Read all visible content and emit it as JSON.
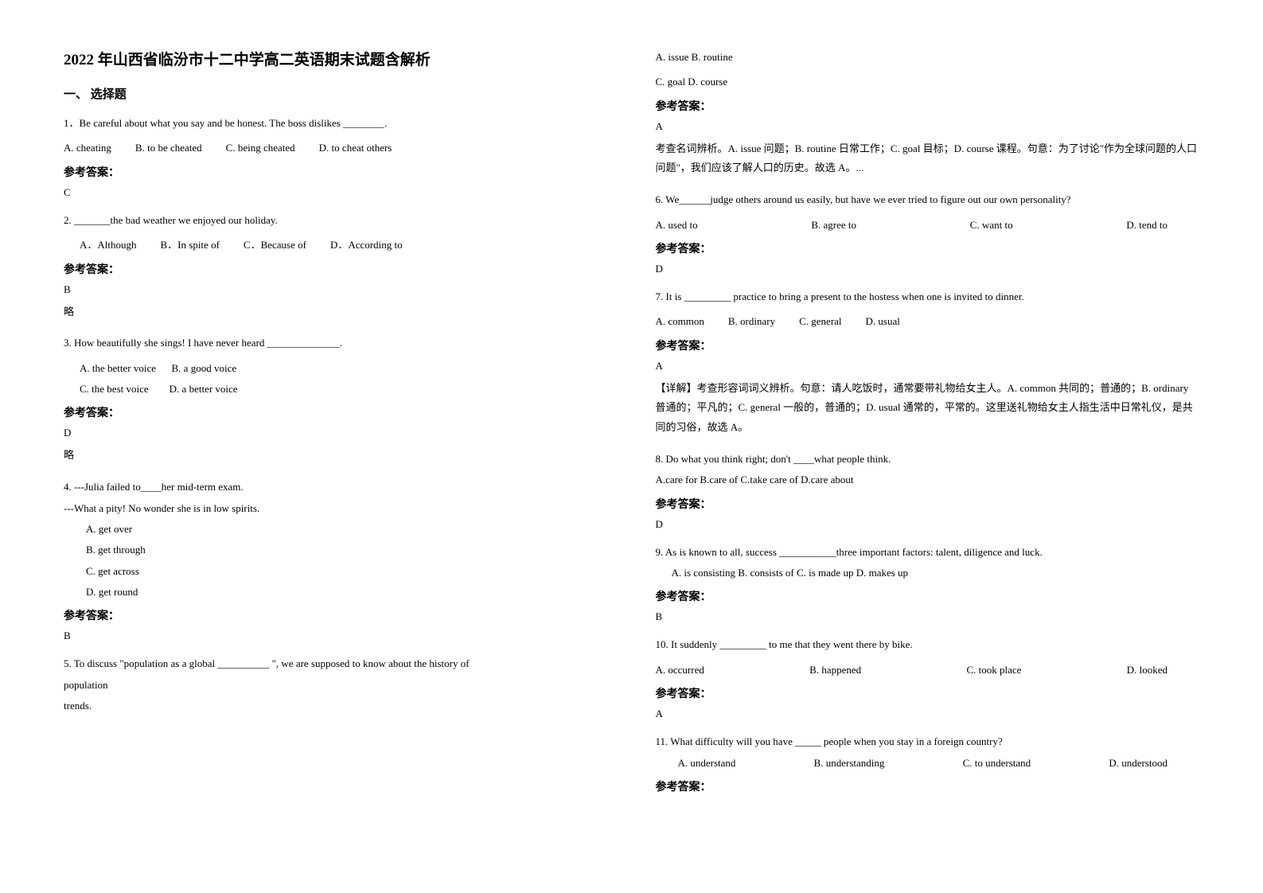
{
  "title": "2022 年山西省临汾市十二中学高二英语期末试题含解析",
  "sectionHeader": "一、 选择题",
  "answerLabel": "参考答案：",
  "left": {
    "q1": {
      "text": "1．Be careful about what you say and be honest. The boss dislikes ________.",
      "optA": "A. cheating",
      "optB": "B. to be cheated",
      "optC": "C. being cheated",
      "optD": "D. to cheat others",
      "answer": "C"
    },
    "q2": {
      "text": "2. _______the bad weather we enjoyed our holiday.",
      "optA": "A．Although",
      "optB": "B．In spite of",
      "optC": "C．Because of",
      "optD": "D．According to",
      "answer": "B",
      "explanation": "略"
    },
    "q3": {
      "text": "3. How beautifully she sings! I have never heard ______________.",
      "optA": "A. the better voice",
      "optB": "B. a good voice",
      "optC": "C. the best voice",
      "optD": "D. a better voice",
      "answer": "D",
      "explanation": "略"
    },
    "q4": {
      "text1": "4. ---Julia failed to____her mid-term exam.",
      "text2": "---What a pity! No wonder she is in low spirits.",
      "optA": "A. get over",
      "optB": "B. get through",
      "optC": "C. get across",
      "optD": "D. get round",
      "answer": "B"
    },
    "q5": {
      "text1": "5. To discuss \"population as a global __________ \", we are supposed to know about the history of",
      "text2": "population",
      "text3": "trends."
    }
  },
  "right": {
    "q5cont": {
      "optLine1": "A. issue    B. routine",
      "optLine2": "C. goal    D. course",
      "answer": "A",
      "explanation": "考查名词辨析。A. issue 问题；B. routine 日常工作；C. goal 目标；D. course 课程。句意：为了讨论\"作为全球问题的人口问题\"，我们应该了解人口的历史。故选 A。..."
    },
    "q6": {
      "text": "6. We______judge others around us easily, but have we ever tried to figure out our own personality?",
      "optA": "A. used to",
      "optB": "B. agree to",
      "optC": "C. want to",
      "optD": "D. tend to",
      "answer": "D"
    },
    "q7": {
      "text": "7. It is _________ practice to bring a present to the hostess when one is invited to dinner.",
      "optA": "A. common",
      "optB": "B. ordinary",
      "optC": "C. general",
      "optD": "D. usual",
      "answer": "A",
      "explanation": "【详解】考查形容词词义辨析。句意：请人吃饭时，通常要带礼物给女主人。A. common 共同的；普通的；B. ordinary 普通的；平凡的；C. general 一般的，普通的；D. usual 通常的，平常的。这里送礼物给女主人指生活中日常礼仪，是共同的习俗，故选 A。"
    },
    "q8": {
      "text": "8. Do what you think right; don't ____what people think.",
      "options": "A.care for    B.care of    C.take care of    D.care about",
      "answer": "D"
    },
    "q9": {
      "text": "9. As is known to all, success ___________three important factors: talent, diligence and luck.",
      "options": "A. is consisting  B. consists of  C. is made up  D. makes up",
      "answer": "B"
    },
    "q10": {
      "text": "10. It suddenly _________ to me that they went there by bike.",
      "optA": "A. occurred",
      "optB": "B. happened",
      "optC": "C. took place",
      "optD": "D. looked",
      "answer": "A"
    },
    "q11": {
      "text": "11. What difficulty will you have _____ people when you stay in a foreign country?",
      "optA": "A. understand",
      "optB": "B. understanding",
      "optC": "C. to understand",
      "optD": "D. understood"
    }
  }
}
